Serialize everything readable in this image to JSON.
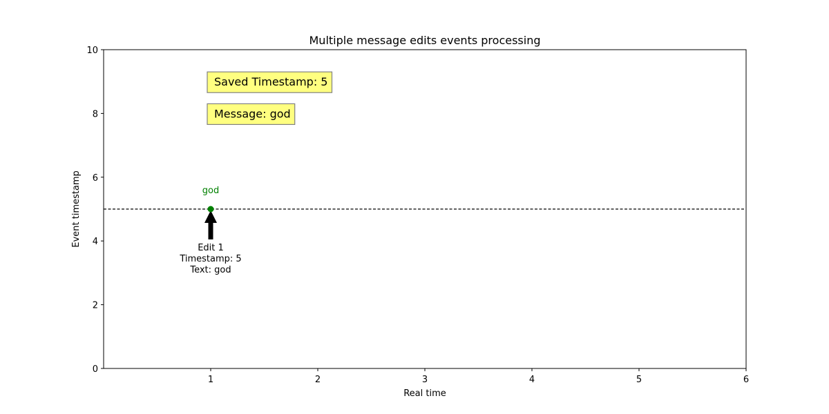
{
  "chart_data": {
    "type": "scatter",
    "title": "Multiple message edits events processing",
    "xlabel": "Real time",
    "ylabel": "Event timestamp",
    "xlim": [
      0,
      6
    ],
    "ylim": [
      0,
      10
    ],
    "xticks": [
      1,
      2,
      3,
      4,
      5,
      6
    ],
    "yticks": [
      0,
      2,
      4,
      6,
      8,
      10
    ],
    "grid": false,
    "points": [
      {
        "x": 1,
        "y": 5,
        "label": "god",
        "color": "#008000"
      }
    ],
    "reference_line": {
      "y": 5,
      "style": "dashed",
      "color": "#000000"
    },
    "annotations": [
      {
        "lines": [
          "Edit 1",
          "Timestamp: 5",
          "Text: god"
        ],
        "x": 1,
        "y": 3.2,
        "arrow_to": {
          "x": 1,
          "y": 5
        }
      }
    ],
    "info_boxes": [
      {
        "text": "Saved Timestamp: 5",
        "x": 1,
        "y": 9,
        "bg": "#ffff80"
      },
      {
        "text": "Message: god",
        "x": 1,
        "y": 8,
        "bg": "#ffff80"
      }
    ]
  }
}
